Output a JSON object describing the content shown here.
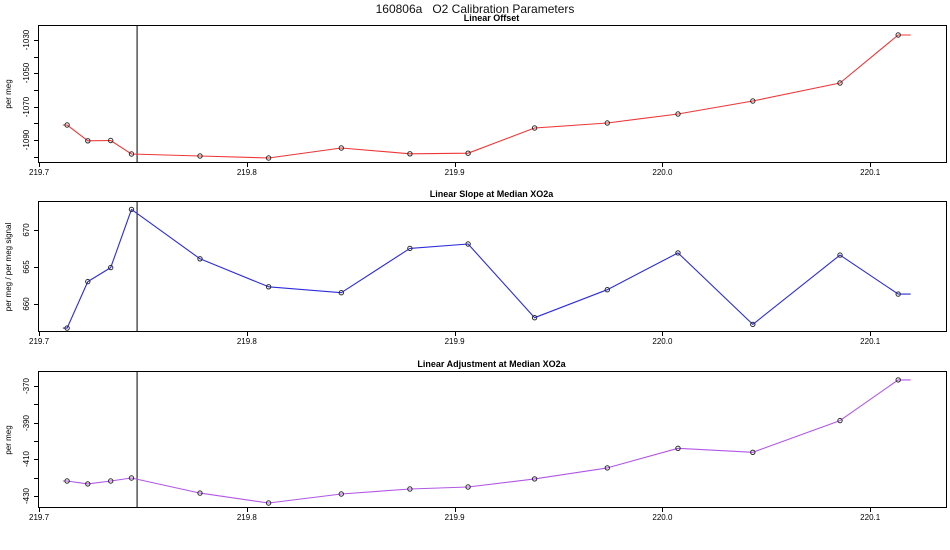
{
  "page_title": "160806a   O2 Calibration Parameters",
  "chart_data": [
    {
      "type": "line",
      "title": "Linear Offset",
      "ylabel": "per meg",
      "line_color": "#ef3737",
      "marker_color": "#2b2b2b",
      "marker": "open-circle",
      "grid": false,
      "x": [
        219.713,
        219.723,
        219.734,
        219.744,
        219.777,
        219.81,
        219.845,
        219.878,
        219.906,
        219.938,
        219.973,
        220.007,
        220.043,
        220.085,
        220.113
      ],
      "values": [
        -1081.0,
        -1090.5,
        -1090.3,
        -1098.4,
        -1099.6,
        -1100.8,
        -1094.8,
        -1098.3,
        -1097.9,
        -1082.8,
        -1079.8,
        -1074.4,
        -1066.6,
        -1055.8,
        -1027.0
      ],
      "edge_extension": {
        "left_x": 219.711,
        "right_x": 220.119
      },
      "vline_x": 219.7467,
      "xlim": [
        219.6995,
        220.136
      ],
      "ylim": [
        -1103.2,
        -1021.6
      ],
      "xticks": [
        {
          "v": 219.7,
          "label": "219.7"
        },
        {
          "v": 219.8,
          "label": "219.8"
        },
        {
          "v": 219.9,
          "label": "219.9"
        },
        {
          "v": 220.0,
          "label": "220.0"
        },
        {
          "v": 220.1,
          "label": "220.1"
        }
      ],
      "yticks": [
        {
          "v": -1090,
          "label": "-1090"
        },
        {
          "v": -1070,
          "label": "-1070"
        },
        {
          "v": -1050,
          "label": "-1050"
        },
        {
          "v": -1030,
          "label": "-1030"
        }
      ],
      "yticks_minor": [
        -1100,
        -1080,
        -1060,
        -1040
      ]
    },
    {
      "type": "line",
      "title": "Linear Slope at Median XO2a",
      "ylabel": "per meg / per meg signal",
      "line_color": "#2c2cd9",
      "marker_color": "#2b2b2b",
      "marker": "open-circle",
      "grid": false,
      "x": [
        219.713,
        219.723,
        219.734,
        219.744,
        219.777,
        219.81,
        219.845,
        219.878,
        219.906,
        219.938,
        219.973,
        220.007,
        220.043,
        220.085,
        220.113
      ],
      "values": [
        656.7,
        663.0,
        664.9,
        672.8,
        666.1,
        662.3,
        661.5,
        667.5,
        668.1,
        658.1,
        661.9,
        666.9,
        657.2,
        666.6,
        661.3
      ],
      "edge_extension": {
        "left_x": 219.711,
        "right_x": 220.119
      },
      "vline_x": 219.7467,
      "xlim": [
        219.6995,
        220.136
      ],
      "ylim": [
        656.3,
        673.8
      ],
      "xticks": [
        {
          "v": 219.7,
          "label": "219.7"
        },
        {
          "v": 219.8,
          "label": "219.8"
        },
        {
          "v": 219.9,
          "label": "219.9"
        },
        {
          "v": 220.0,
          "label": "220.0"
        },
        {
          "v": 220.1,
          "label": "220.1"
        }
      ],
      "yticks": [
        {
          "v": 660,
          "label": "660"
        },
        {
          "v": 665,
          "label": "665"
        },
        {
          "v": 670,
          "label": "670"
        }
      ],
      "yticks_minor": []
    },
    {
      "type": "line",
      "title": "Linear Adjustment at Median XO2a",
      "ylabel": "per meg",
      "line_color": "#b257e6",
      "marker_color": "#2b2b2b",
      "marker": "open-circle",
      "grid": false,
      "x": [
        219.713,
        219.723,
        219.734,
        219.744,
        219.777,
        219.81,
        219.845,
        219.878,
        219.906,
        219.938,
        219.973,
        220.007,
        220.043,
        220.085,
        220.113
      ],
      "values": [
        -421.8,
        -423.4,
        -421.8,
        -420.2,
        -428.4,
        -433.8,
        -428.9,
        -426.2,
        -425.1,
        -420.7,
        -414.7,
        -404.0,
        -406.2,
        -388.9,
        -366.7
      ],
      "edge_extension": {
        "left_x": 219.711,
        "right_x": 220.119
      },
      "vline_x": 219.7467,
      "xlim": [
        219.6995,
        220.136
      ],
      "ylim": [
        -436.0,
        -362.4
      ],
      "xticks": [
        {
          "v": 219.7,
          "label": "219.7"
        },
        {
          "v": 219.8,
          "label": "219.8"
        },
        {
          "v": 219.9,
          "label": "219.9"
        },
        {
          "v": 220.0,
          "label": "220.0"
        },
        {
          "v": 220.1,
          "label": "220.1"
        }
      ],
      "yticks": [
        {
          "v": -430,
          "label": "-430"
        },
        {
          "v": -410,
          "label": "-410"
        },
        {
          "v": -390,
          "label": "-390"
        },
        {
          "v": -370,
          "label": "-370"
        }
      ],
      "yticks_minor": [
        -420,
        -400,
        -380
      ]
    }
  ]
}
